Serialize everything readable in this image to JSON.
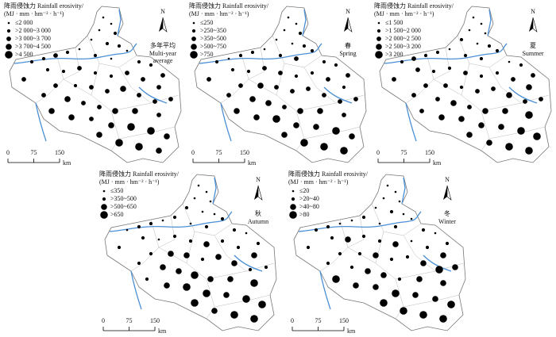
{
  "panels": [
    {
      "legend_title": "降雨侵蚀力 Rainfall erosivity/",
      "unit": "(MJ · mm · hm⁻² · h⁻¹)",
      "classes": [
        "≤2 000",
        ">2 000~3 000",
        ">3 000~3 700",
        ">3 700~4 500",
        ">4 500"
      ],
      "season_zh": "多年平均",
      "season_en": [
        "Multi-year",
        "average"
      ],
      "north": "N",
      "scale": [
        "0",
        "75",
        "150"
      ],
      "scale_unit": "km"
    },
    {
      "legend_title": "降雨侵蚀力 Rainfall erosivity/",
      "unit": "(MJ · mm · hm⁻² · h⁻¹)",
      "classes": [
        "≤250",
        ">250~350",
        ">350~500",
        ">500~750",
        ">750"
      ],
      "season_zh": "春",
      "season_en": [
        "Spring"
      ],
      "north": "N",
      "scale": [
        "0",
        "75",
        "150"
      ],
      "scale_unit": "km"
    },
    {
      "legend_title": "降雨侵蚀力 Rainfall erosivity/",
      "unit": "(MJ · mm · hm⁻² · h⁻¹)",
      "classes": [
        "≤1 500",
        ">1 500~2 000",
        ">2 000~2 500",
        ">2 500~3 200",
        ">3 200"
      ],
      "season_zh": "夏",
      "season_en": [
        "Summer"
      ],
      "north": "N",
      "scale": [
        "0",
        "75",
        "150"
      ],
      "scale_unit": "km"
    },
    {
      "legend_title": "降雨侵蚀力 Rainfall erosivity/",
      "unit": "(MJ · mm · hm⁻² · h⁻¹)",
      "classes": [
        "≤350",
        ">350~500",
        ">500~650",
        ">650"
      ],
      "season_zh": "秋",
      "season_en": [
        "Autumn"
      ],
      "north": "N",
      "scale": [
        "0",
        "75",
        "150"
      ],
      "scale_unit": "km"
    },
    {
      "legend_title": "降雨侵蚀力 Rainfall erosivity/",
      "unit": "(MJ · mm · hm⁻² · h⁻¹)",
      "classes": [
        "≤20",
        ">20~40",
        ">40~80",
        ">80"
      ],
      "season_zh": "冬",
      "season_en": [
        "Winter"
      ],
      "north": "N",
      "scale": [
        "0",
        "75",
        "150"
      ],
      "scale_unit": "km"
    }
  ]
}
